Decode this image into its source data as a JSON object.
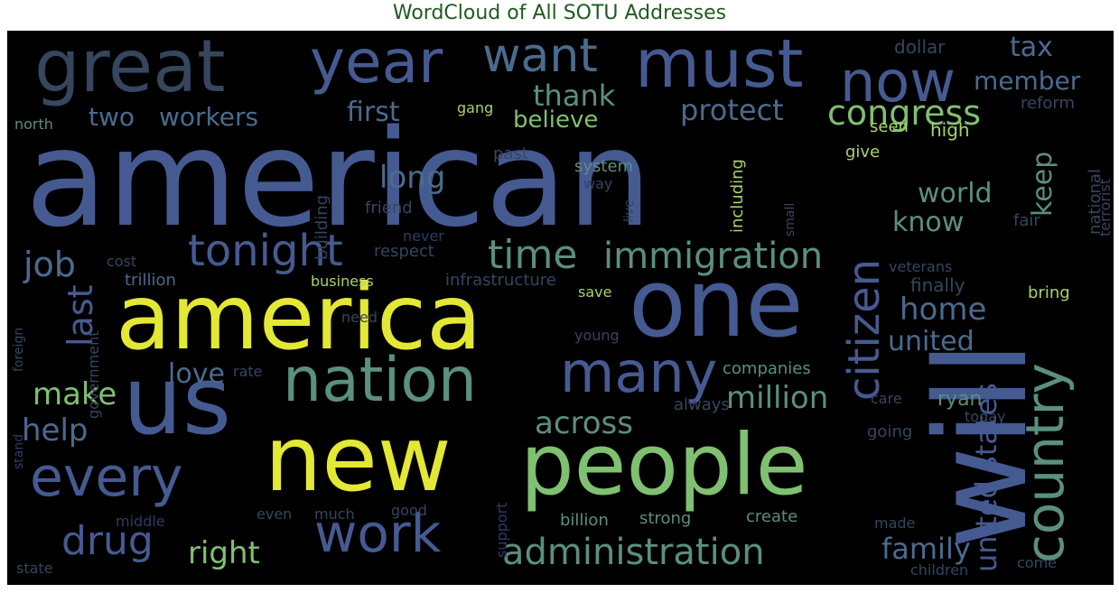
{
  "title": "WordCloud of All SOTU Addresses",
  "palette": {
    "background": "#000000",
    "title": "#1f5a1f",
    "c0": "#3c4f8a",
    "c1": "#465a92",
    "c2": "#4a6b8e",
    "c3": "#5b8f7e",
    "c4": "#7fc071",
    "c5": "#a9d36a",
    "c6": "#e3e834",
    "c7": "#2f3b66",
    "c8": "#35465e"
  },
  "words": [
    {
      "text": "american",
      "color": "c1"
    },
    {
      "text": "will",
      "color": "c1"
    },
    {
      "text": "america",
      "color": "c6"
    },
    {
      "text": "new",
      "color": "c6"
    },
    {
      "text": "people",
      "color": "c4"
    },
    {
      "text": "one",
      "color": "c1"
    },
    {
      "text": "us",
      "color": "c1"
    },
    {
      "text": "great",
      "color": "c8"
    },
    {
      "text": "year",
      "color": "c1"
    },
    {
      "text": "must",
      "color": "c1"
    },
    {
      "text": "now",
      "color": "c1"
    },
    {
      "text": "want",
      "color": "c2"
    },
    {
      "text": "nation",
      "color": "c3"
    },
    {
      "text": "country",
      "color": "c3"
    },
    {
      "text": "every",
      "color": "c1"
    },
    {
      "text": "work",
      "color": "c1"
    },
    {
      "text": "many",
      "color": "c1"
    },
    {
      "text": "citizen",
      "color": "c1"
    },
    {
      "text": "tonight",
      "color": "c1"
    },
    {
      "text": "time",
      "color": "c3"
    },
    {
      "text": "immigration",
      "color": "c3"
    },
    {
      "text": "administration",
      "color": "c3"
    },
    {
      "text": "united states",
      "color": "c1"
    },
    {
      "text": "drug",
      "color": "c1"
    },
    {
      "text": "right",
      "color": "c4"
    },
    {
      "text": "congress",
      "color": "c4"
    },
    {
      "text": "family",
      "color": "c2"
    },
    {
      "text": "across",
      "color": "c3"
    },
    {
      "text": "million",
      "color": "c3"
    },
    {
      "text": "job",
      "color": "c2"
    },
    {
      "text": "last",
      "color": "c1"
    },
    {
      "text": "make",
      "color": "c4"
    },
    {
      "text": "help",
      "color": "c2"
    },
    {
      "text": "love",
      "color": "c2"
    },
    {
      "text": "home",
      "color": "c2"
    },
    {
      "text": "united",
      "color": "c2"
    },
    {
      "text": "world",
      "color": "c3"
    },
    {
      "text": "know",
      "color": "c3"
    },
    {
      "text": "keep",
      "color": "c3"
    },
    {
      "text": "long",
      "color": "c2"
    },
    {
      "text": "thank",
      "color": "c3"
    },
    {
      "text": "believe",
      "color": "c4"
    },
    {
      "text": "protect",
      "color": "c2"
    },
    {
      "text": "first",
      "color": "c2"
    },
    {
      "text": "two",
      "color": "c2"
    },
    {
      "text": "workers",
      "color": "c2"
    },
    {
      "text": "tax",
      "color": "c2"
    },
    {
      "text": "member",
      "color": "c2"
    },
    {
      "text": "dollar",
      "color": "c8"
    },
    {
      "text": "reform",
      "color": "c8"
    },
    {
      "text": "high",
      "color": "c5"
    },
    {
      "text": "seen",
      "color": "c5"
    },
    {
      "text": "give",
      "color": "c5"
    },
    {
      "text": "gang",
      "color": "c5"
    },
    {
      "text": "north",
      "color": "c3"
    },
    {
      "text": "past",
      "color": "c8"
    },
    {
      "text": "system",
      "color": "c3"
    },
    {
      "text": "way",
      "color": "c8"
    },
    {
      "text": "friend",
      "color": "c8"
    },
    {
      "text": "building",
      "color": "c8"
    },
    {
      "text": "live",
      "color": "c8"
    },
    {
      "text": "including",
      "color": "c5"
    },
    {
      "text": "small",
      "color": "c8"
    },
    {
      "text": "national",
      "color": "c8"
    },
    {
      "text": "terrorist",
      "color": "c8"
    },
    {
      "text": "fair",
      "color": "c8"
    },
    {
      "text": "veterans",
      "color": "c8"
    },
    {
      "text": "finally",
      "color": "c8"
    },
    {
      "text": "bring",
      "color": "c5"
    },
    {
      "text": "never",
      "color": "c7"
    },
    {
      "text": "respect",
      "color": "c8"
    },
    {
      "text": "cost",
      "color": "c8"
    },
    {
      "text": "trillion",
      "color": "c2"
    },
    {
      "text": "business",
      "color": "c5"
    },
    {
      "text": "infrastructure",
      "color": "c8"
    },
    {
      "text": "save",
      "color": "c5"
    },
    {
      "text": "need",
      "color": "c8"
    },
    {
      "text": "young",
      "color": "c8"
    },
    {
      "text": "foreign",
      "color": "c8"
    },
    {
      "text": "government",
      "color": "c8"
    },
    {
      "text": "rate",
      "color": "c8"
    },
    {
      "text": "companies",
      "color": "c3"
    },
    {
      "text": "care",
      "color": "c8"
    },
    {
      "text": "ryan",
      "color": "c3"
    },
    {
      "text": "always",
      "color": "c8"
    },
    {
      "text": "today",
      "color": "c8"
    },
    {
      "text": "going",
      "color": "c8"
    },
    {
      "text": "stand",
      "color": "c7"
    },
    {
      "text": "support",
      "color": "c7"
    },
    {
      "text": "middle",
      "color": "c7"
    },
    {
      "text": "even",
      "color": "c8"
    },
    {
      "text": "much",
      "color": "c8"
    },
    {
      "text": "good",
      "color": "c8"
    },
    {
      "text": "billion",
      "color": "c3"
    },
    {
      "text": "strong",
      "color": "c3"
    },
    {
      "text": "create",
      "color": "c3"
    },
    {
      "text": "made",
      "color": "c8"
    },
    {
      "text": "state",
      "color": "c8"
    },
    {
      "text": "children",
      "color": "c8"
    },
    {
      "text": "come",
      "color": "c8"
    }
  ]
}
